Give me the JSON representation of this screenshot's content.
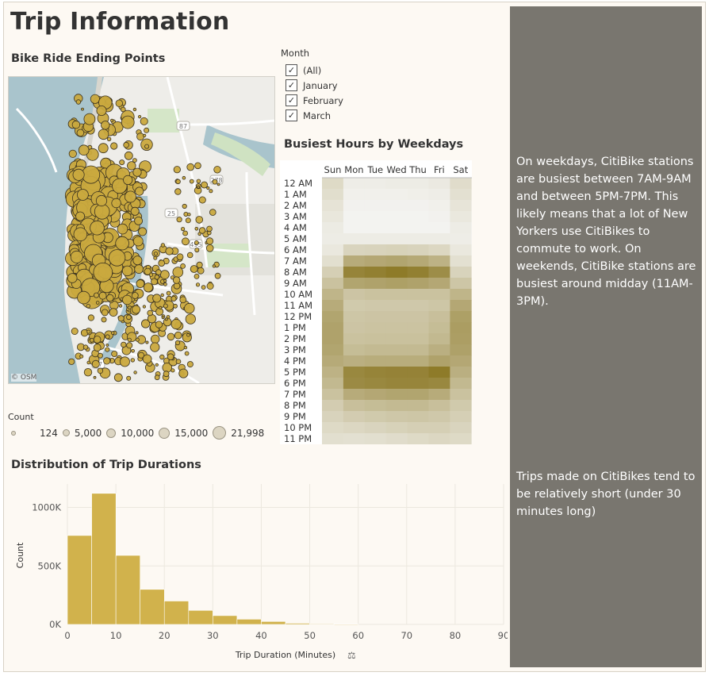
{
  "dashboard": {
    "title": "Trip Information",
    "map_title": "Bike Ride Ending Points",
    "heatmap_title": "Busiest Hours by Weekdays",
    "duration_title": "Distribution of Trip Durations"
  },
  "map": {
    "attribution": "© OSM",
    "road_labels": [
      "87",
      "278",
      "25",
      "495",
      "27"
    ]
  },
  "size_legend": {
    "title": "Count",
    "items": [
      {
        "label": "124",
        "size": 4
      },
      {
        "label": "5,000",
        "size": 7
      },
      {
        "label": "10,000",
        "size": 10
      },
      {
        "label": "15,000",
        "size": 12
      },
      {
        "label": "21,998",
        "size": 15
      }
    ]
  },
  "filter": {
    "title": "Month",
    "options": [
      {
        "label": "(All)",
        "checked": true
      },
      {
        "label": "January",
        "checked": true
      },
      {
        "label": "February",
        "checked": true
      },
      {
        "label": "March",
        "checked": true
      }
    ]
  },
  "panel": {
    "text1": "On weekdays, CitiBike stations are busiest between 7AM-9AM and between 5PM-7PM. This likely means that a lot of New Yorkers use CitiBikes to commute to work. On weekends, CitiBike stations are busiest around midday (11AM-3PM).",
    "text2": "Trips made on CitiBikes tend to be relatively short (under 30 minutes long)"
  },
  "colors": {
    "bar": "#d1b24c",
    "heat_low": "#f4f4f2",
    "heat_high": "#857018",
    "panel": "#79766f",
    "map_marker": "#c9a93e"
  },
  "chart_data": [
    {
      "type": "heatmap",
      "title": "Busiest Hours by Weekdays",
      "columns": [
        "Sun",
        "Mon",
        "Tue",
        "Wed",
        "Thu",
        "Fri",
        "Sat"
      ],
      "rows": [
        "12 AM",
        "1 AM",
        "2 AM",
        "3 AM",
        "4 AM",
        "5 AM",
        "6 AM",
        "7 AM",
        "8 AM",
        "9 AM",
        "10 AM",
        "11 AM",
        "12 PM",
        "1 PM",
        "2 PM",
        "3 PM",
        "4 PM",
        "5 PM",
        "6 PM",
        "7 PM",
        "8 PM",
        "9 PM",
        "10 PM",
        "11 PM"
      ],
      "values": [
        [
          0.2,
          0.05,
          0.05,
          0.06,
          0.06,
          0.08,
          0.18
        ],
        [
          0.17,
          0.03,
          0.03,
          0.03,
          0.04,
          0.05,
          0.15
        ],
        [
          0.13,
          0.02,
          0.02,
          0.02,
          0.02,
          0.03,
          0.12
        ],
        [
          0.1,
          0.01,
          0.01,
          0.01,
          0.01,
          0.02,
          0.09
        ],
        [
          0.07,
          0.01,
          0.01,
          0.01,
          0.01,
          0.01,
          0.06
        ],
        [
          0.06,
          0.06,
          0.06,
          0.06,
          0.06,
          0.06,
          0.05
        ],
        [
          0.09,
          0.24,
          0.25,
          0.26,
          0.25,
          0.22,
          0.09
        ],
        [
          0.16,
          0.55,
          0.58,
          0.6,
          0.57,
          0.5,
          0.15
        ],
        [
          0.28,
          0.85,
          0.88,
          0.92,
          0.88,
          0.78,
          0.25
        ],
        [
          0.38,
          0.6,
          0.62,
          0.64,
          0.62,
          0.58,
          0.35
        ],
        [
          0.48,
          0.36,
          0.38,
          0.38,
          0.38,
          0.38,
          0.48
        ],
        [
          0.55,
          0.32,
          0.33,
          0.33,
          0.33,
          0.35,
          0.58
        ],
        [
          0.6,
          0.35,
          0.36,
          0.36,
          0.36,
          0.4,
          0.64
        ],
        [
          0.62,
          0.36,
          0.37,
          0.37,
          0.37,
          0.42,
          0.66
        ],
        [
          0.62,
          0.38,
          0.39,
          0.39,
          0.39,
          0.45,
          0.65
        ],
        [
          0.6,
          0.42,
          0.44,
          0.44,
          0.44,
          0.52,
          0.63
        ],
        [
          0.56,
          0.52,
          0.54,
          0.54,
          0.54,
          0.62,
          0.58
        ],
        [
          0.5,
          0.82,
          0.85,
          0.86,
          0.86,
          0.92,
          0.52
        ],
        [
          0.45,
          0.8,
          0.82,
          0.84,
          0.84,
          0.82,
          0.45
        ],
        [
          0.38,
          0.55,
          0.58,
          0.6,
          0.6,
          0.55,
          0.38
        ],
        [
          0.3,
          0.4,
          0.42,
          0.44,
          0.44,
          0.4,
          0.32
        ],
        [
          0.25,
          0.3,
          0.32,
          0.34,
          0.35,
          0.33,
          0.28
        ],
        [
          0.2,
          0.22,
          0.24,
          0.26,
          0.28,
          0.28,
          0.24
        ],
        [
          0.16,
          0.15,
          0.16,
          0.18,
          0.2,
          0.22,
          0.2
        ]
      ]
    },
    {
      "type": "bar",
      "title": "Distribution of Trip Durations",
      "xlabel": "Trip Duration (Minutes)",
      "ylabel": "Count",
      "bin_width": 5,
      "bin_starts": [
        0,
        5,
        10,
        15,
        20,
        25,
        30,
        35,
        40,
        45,
        50,
        55
      ],
      "values": [
        760000,
        1120000,
        590000,
        300000,
        200000,
        120000,
        75000,
        45000,
        25000,
        10000,
        5000,
        2000
      ],
      "xlim": [
        0,
        90
      ],
      "xticks": [
        "0",
        "10",
        "20",
        "30",
        "40",
        "50",
        "60",
        "70",
        "80",
        "90"
      ],
      "ylim": [
        0,
        1200000
      ],
      "yticks": [
        {
          "value": 0,
          "label": "0K"
        },
        {
          "value": 500000,
          "label": "500K"
        },
        {
          "value": 1000000,
          "label": "1000K"
        }
      ],
      "grid": true
    }
  ]
}
